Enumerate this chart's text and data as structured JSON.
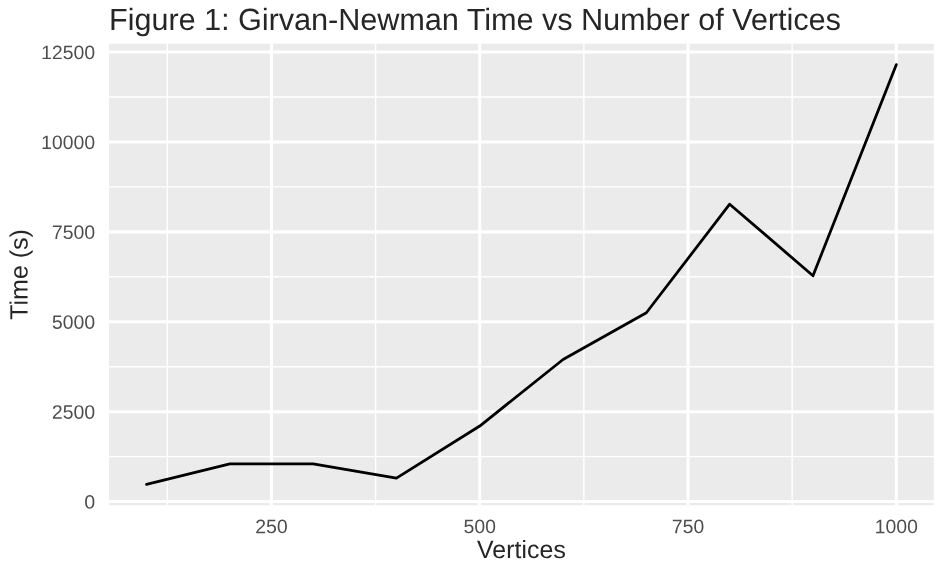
{
  "chart_data": {
    "type": "line",
    "title": "Figure 1: Girvan-Newman Time vs Number of Vertices",
    "xlabel": "Vertices",
    "ylabel": "Time (s)",
    "x": [
      100,
      200,
      300,
      400,
      500,
      600,
      700,
      800,
      900,
      1000
    ],
    "series": [
      {
        "color": "#000000",
        "values": [
          480,
          1050,
          1050,
          650,
          2100,
          3950,
          5250,
          8270,
          6280,
          12150
        ]
      }
    ],
    "xlim": [
      55,
      1045
    ],
    "xticks": [
      250,
      500,
      750,
      1000
    ],
    "ylim": [
      -100,
      12730
    ],
    "yticks": [
      0,
      2500,
      5000,
      7500,
      10000,
      12500
    ],
    "grid": true,
    "legend": false,
    "marker": "none",
    "line_style": "solid"
  }
}
